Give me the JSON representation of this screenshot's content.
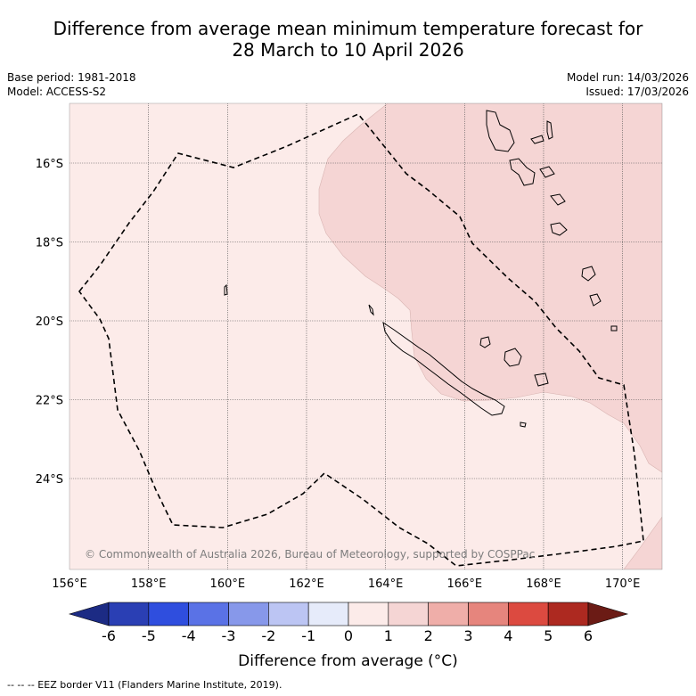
{
  "title": {
    "line1": "Difference from average mean minimum temperature forecast for",
    "line2": "28 March to 10 April 2026"
  },
  "meta": {
    "base_period": "Base period: 1981-2018",
    "model": "Model: ACCESS-S2",
    "model_run": "Model run: 14/03/2026",
    "issued": "Issued: 17/03/2026"
  },
  "map": {
    "lon_range": [
      156,
      171
    ],
    "lat_range": [
      -26.3,
      -14.5
    ],
    "lon_ticks": [
      "156°E",
      "158°E",
      "160°E",
      "162°E",
      "164°E",
      "166°E",
      "168°E",
      "170°E"
    ],
    "lat_ticks": [
      "16°S",
      "18°S",
      "20°S",
      "22°S",
      "24°S"
    ],
    "copyright": "© Commonwealth of Australia 2026, Bureau of Meteorology, supported by COSPPac",
    "colors": {
      "band_0_to_1": "#fcebe9",
      "band_1_to_2": "#f5d5d4",
      "coast": "#000000",
      "grid": "#555555"
    }
  },
  "colorbar": {
    "ticks": [
      "-6",
      "-5",
      "-4",
      "-3",
      "-2",
      "-1",
      "0",
      "1",
      "2",
      "3",
      "4",
      "5",
      "6"
    ],
    "colors": [
      "#1c2b84",
      "#2a3fb4",
      "#2f4ede",
      "#5a72e6",
      "#8798ea",
      "#bcc5f3",
      "#e6ebfa",
      "#fcebe9",
      "#f5d5d4",
      "#efaea9",
      "#e6857d",
      "#dc4a40",
      "#ad2920",
      "#6b1b15"
    ],
    "label": "Difference from average (°C)"
  },
  "footnote": "--  --  -- EEZ border V11 (Flanders Marine Institute, 2019)."
}
